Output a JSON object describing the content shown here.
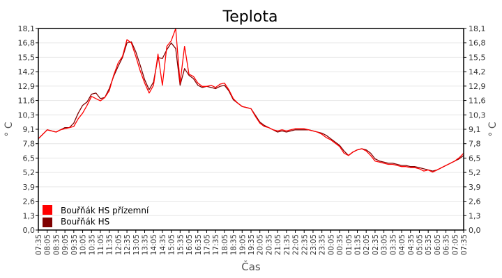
{
  "chart_data": {
    "type": "line",
    "title": "Teplota",
    "xlabel": "Čas",
    "ylabel": "° C",
    "ylim": [
      0,
      18.1
    ],
    "yticks": [
      "0,0",
      "1,3",
      "2,6",
      "3,9",
      "5,2",
      "6,5",
      "7,8",
      "9,1",
      "10,3",
      "11,6",
      "12,9",
      "14,2",
      "15,5",
      "16,8",
      "18,1"
    ],
    "xticks": [
      "07:35",
      "08:05",
      "08:35",
      "09:05",
      "09:35",
      "10:05",
      "10:35",
      "11:05",
      "11:35",
      "12:05",
      "12:35",
      "13:05",
      "13:35",
      "14:05",
      "14:35",
      "15:05",
      "15:35",
      "16:05",
      "16:35",
      "17:05",
      "17:35",
      "18:05",
      "18:35",
      "19:05",
      "19:35",
      "20:05",
      "20:35",
      "21:05",
      "21:35",
      "22:05",
      "22:35",
      "23:05",
      "23:35",
      "00:05",
      "00:35",
      "01:05",
      "01:35",
      "02:05",
      "02:35",
      "03:05",
      "03:35",
      "04:05",
      "04:35",
      "05:05",
      "05:35",
      "06:05",
      "06:35",
      "07:05",
      "07:35"
    ],
    "x_interval_minutes": 15,
    "grid": true,
    "legend_position": "bottom-left",
    "series": [
      {
        "name": "Bouřňák HS přízemní",
        "color": "#ff0000",
        "values": [
          8.2,
          8.6,
          9.0,
          8.9,
          8.8,
          9.0,
          9.1,
          9.2,
          9.3,
          10.0,
          10.5,
          11.2,
          12.0,
          11.8,
          11.6,
          11.9,
          12.5,
          13.9,
          15.0,
          15.6,
          17.1,
          16.8,
          15.6,
          14.3,
          13.2,
          12.3,
          13.0,
          15.8,
          13.0,
          16.5,
          17.0,
          18.1,
          13.2,
          16.5,
          14.0,
          13.8,
          13.2,
          12.9,
          12.9,
          13.0,
          12.8,
          13.1,
          13.2,
          12.6,
          11.8,
          11.4,
          11.1,
          11.0,
          10.9,
          10.2,
          9.6,
          9.3,
          9.2,
          9.0,
          8.9,
          9.0,
          8.9,
          9.0,
          9.1,
          9.1,
          9.1,
          9.0,
          8.9,
          8.8,
          8.6,
          8.3,
          8.1,
          7.8,
          7.5,
          6.9,
          6.7,
          7.0,
          7.2,
          7.3,
          7.1,
          6.7,
          6.2,
          6.1,
          6.0,
          5.9,
          5.9,
          5.8,
          5.7,
          5.7,
          5.6,
          5.6,
          5.5,
          5.3,
          5.4,
          5.2,
          5.4,
          5.6,
          5.8,
          6.0,
          6.2,
          6.5,
          6.9
        ]
      },
      {
        "name": "Bouřňák HS",
        "color": "#800000",
        "values": [
          8.2,
          8.6,
          9.0,
          8.9,
          8.8,
          9.0,
          9.2,
          9.2,
          9.6,
          10.5,
          11.2,
          11.5,
          12.2,
          12.3,
          11.8,
          11.9,
          12.7,
          13.8,
          14.7,
          15.5,
          16.8,
          16.9,
          16.0,
          14.8,
          13.5,
          12.6,
          13.3,
          15.5,
          15.4,
          16.2,
          16.8,
          16.3,
          13.0,
          14.5,
          13.9,
          13.6,
          13.0,
          12.8,
          12.9,
          12.8,
          12.7,
          12.9,
          13.0,
          12.5,
          11.7,
          11.4,
          11.1,
          11.0,
          10.9,
          10.3,
          9.7,
          9.4,
          9.2,
          9.0,
          8.8,
          8.9,
          8.8,
          8.9,
          9.0,
          9.0,
          9.0,
          9.0,
          8.9,
          8.8,
          8.7,
          8.5,
          8.2,
          7.9,
          7.6,
          7.1,
          6.7,
          7.0,
          7.2,
          7.3,
          7.2,
          6.9,
          6.4,
          6.2,
          6.1,
          6.0,
          6.0,
          5.9,
          5.8,
          5.8,
          5.7,
          5.7,
          5.6,
          5.5,
          5.4,
          5.3,
          5.4,
          5.6,
          5.8,
          6.0,
          6.2,
          6.4,
          6.7
        ]
      }
    ]
  }
}
